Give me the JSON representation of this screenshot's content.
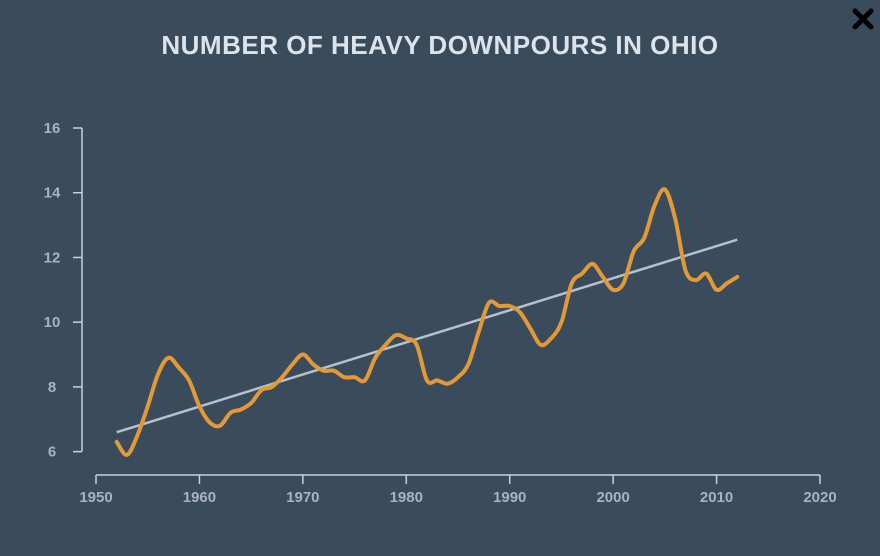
{
  "title": "NUMBER OF HEAVY DOWNPOURS IN OHIO",
  "close_icon": "close-icon",
  "colors": {
    "background": "#3a4b5c",
    "series": "#e39a36",
    "trend": "#b8c0cb",
    "axis": "#c9d0d8",
    "tick_text": "#a9b3bf"
  },
  "chart_data": {
    "type": "line",
    "title": "NUMBER OF HEAVY DOWNPOURS IN OHIO",
    "xlabel": "",
    "ylabel": "",
    "xlim": [
      1950,
      2020
    ],
    "ylim": [
      5,
      16
    ],
    "x_ticks": [
      1950,
      1960,
      1970,
      1980,
      1990,
      2000,
      2010,
      2020
    ],
    "y_ticks": [
      6,
      8,
      10,
      12,
      14,
      16
    ],
    "grid": false,
    "series": [
      {
        "x": [
          1952,
          1953,
          1954,
          1955,
          1956,
          1957,
          1958,
          1959,
          1960,
          1961,
          1962,
          1963,
          1964,
          1965,
          1966,
          1967,
          1968,
          1969,
          1970,
          1971,
          1972,
          1973,
          1974,
          1975,
          1976,
          1977,
          1978,
          1979,
          1980,
          1981,
          1982,
          1983,
          1984,
          1985,
          1986,
          1987,
          1988,
          1989,
          1990,
          1991,
          1992,
          1993,
          1994,
          1995,
          1996,
          1997,
          1998,
          1999,
          2000,
          2001,
          2002,
          2003,
          2004,
          2005,
          2006,
          2007,
          2008,
          2009,
          2010,
          2011,
          2012
        ],
        "values": [
          6.3,
          5.9,
          6.5,
          7.4,
          8.4,
          8.9,
          8.6,
          8.2,
          7.4,
          6.9,
          6.8,
          7.2,
          7.3,
          7.5,
          7.9,
          8.0,
          8.3,
          8.7,
          9.0,
          8.7,
          8.5,
          8.5,
          8.3,
          8.3,
          8.2,
          8.9,
          9.3,
          9.6,
          9.5,
          9.3,
          8.2,
          8.2,
          8.1,
          8.3,
          8.7,
          9.7,
          10.6,
          10.5,
          10.5,
          10.3,
          9.8,
          9.3,
          9.5,
          10.0,
          11.2,
          11.5,
          11.8,
          11.4,
          11.0,
          11.2,
          12.2,
          12.6,
          13.6,
          14.1,
          13.2,
          11.6,
          11.3,
          11.5,
          11.0,
          11.2,
          11.4
        ]
      },
      {
        "x": [
          1952,
          2012
        ],
        "values": [
          6.6,
          12.55
        ]
      }
    ]
  }
}
